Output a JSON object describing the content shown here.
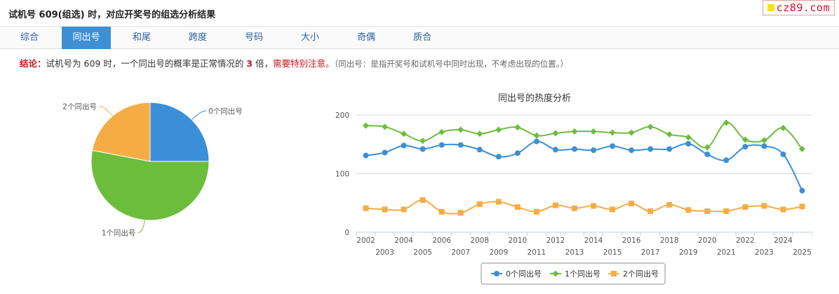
{
  "header": {
    "title": "试机号 609(组选) 时，对应开奖号的组选分析结果",
    "brand": "cz89.com"
  },
  "tabs": [
    {
      "label": "综合",
      "active": false
    },
    {
      "label": "同出号",
      "active": true
    },
    {
      "label": "和尾",
      "active": false
    },
    {
      "label": "跨度",
      "active": false
    },
    {
      "label": "号码",
      "active": false
    },
    {
      "label": "大小",
      "active": false
    },
    {
      "label": "奇偶",
      "active": false
    },
    {
      "label": "质合",
      "active": false
    }
  ],
  "conclusion": {
    "label": "结论：",
    "text_a": "试机号为 609 时，一个同出号的概率是正常情况的 ",
    "multiple": "3",
    "text_b": " 倍，",
    "warning": "需要特别注意。",
    "note": "（同出号：是指开奖号和试机号中同时出现，不考虑出现的位置。）"
  },
  "colors": {
    "blue": "#3b8fd8",
    "green": "#6cbd3c",
    "orange": "#f5ac45",
    "tab_active": "#3d8fd6",
    "accent_red": "#c8161d"
  },
  "chart_data": [
    {
      "type": "pie",
      "slices": [
        {
          "label": "0个同出号",
          "value": 25
        },
        {
          "label": "1个同出号",
          "value": 53
        },
        {
          "label": "2个同出号",
          "value": 22
        }
      ]
    },
    {
      "type": "line",
      "title": "同出号的热度分析",
      "x": [
        2002,
        2003,
        2004,
        2005,
        2006,
        2007,
        2008,
        2009,
        2010,
        2011,
        2012,
        2013,
        2014,
        2015,
        2016,
        2017,
        2018,
        2019,
        2020,
        2021,
        2022,
        2023,
        2024,
        2025
      ],
      "y_ticks": [
        0,
        100,
        200
      ],
      "ylim": [
        0,
        200
      ],
      "grid": true,
      "legend": "bottom-center",
      "series": [
        {
          "name": "0个同出号",
          "marker": "circle",
          "values": [
            131,
            136,
            148,
            142,
            149,
            149,
            141,
            129,
            135,
            155,
            141,
            142,
            140,
            147,
            140,
            142,
            142,
            151,
            133,
            123,
            146,
            147,
            133,
            71
          ]
        },
        {
          "name": "1个同出号",
          "marker": "diamond",
          "values": [
            182,
            180,
            168,
            156,
            171,
            175,
            168,
            175,
            179,
            165,
            169,
            172,
            172,
            170,
            170,
            180,
            167,
            162,
            145,
            187,
            158,
            157,
            178,
            142
          ]
        },
        {
          "name": "2个同出号",
          "marker": "square",
          "values": [
            41,
            39,
            39,
            55,
            35,
            33,
            48,
            52,
            43,
            35,
            46,
            41,
            45,
            39,
            49,
            36,
            47,
            38,
            36,
            36,
            43,
            45,
            39,
            44
          ]
        }
      ]
    }
  ]
}
